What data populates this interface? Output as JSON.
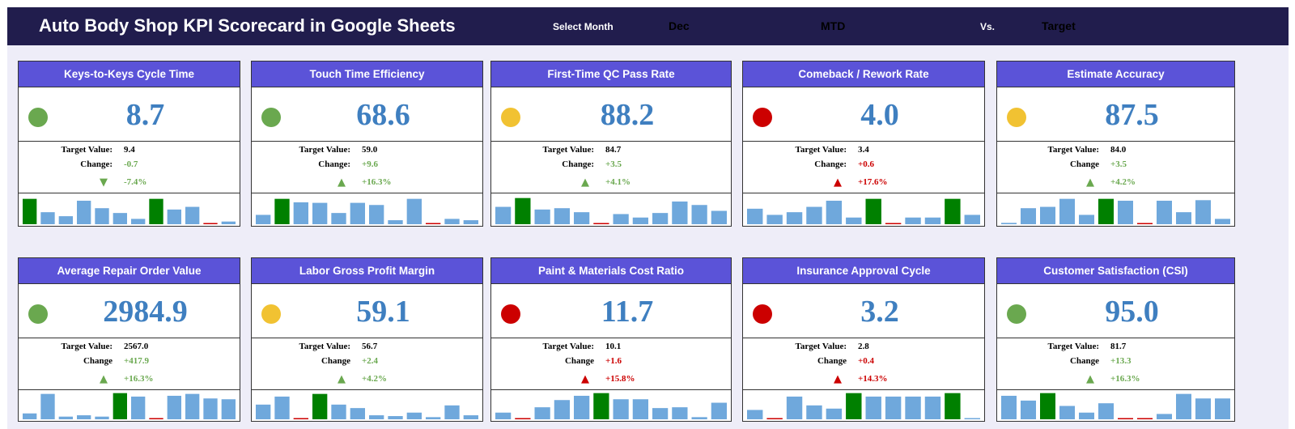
{
  "header": {
    "title": "Auto Body Shop KPI Scorecard in Google Sheets",
    "select_month_label": "Select Month",
    "month_value": "Dec",
    "period_value": "MTD",
    "vs_label": "Vs.",
    "compare_value": "Target"
  },
  "labels": {
    "target": "Target Value:",
    "change_colon": "Change:",
    "change": "Change"
  },
  "colors": {
    "good": "#6aa84f",
    "warn": "#f1c232",
    "bad": "#cc0000",
    "bar": "#6fa8dc",
    "bar_highlight": "#008000",
    "bar_low": "#cc0000",
    "header_bg": "#211d4d",
    "card_head_bg": "#5b53d8"
  },
  "kpis": [
    {
      "title": "Keys-to-Keys Cycle Time",
      "value": "8.7",
      "status": "good",
      "target": "9.4",
      "change_label": "change_colon",
      "change": "-0.7",
      "change_dir": "pos",
      "arrow": "▼",
      "pct": "-7.4%",
      "spark": [
        0.95,
        0.45,
        0.3,
        0.88,
        0.6,
        0.42,
        0.2,
        0.95,
        0.55,
        0.65,
        0.03,
        0.1
      ],
      "spark_hi": [
        0,
        7
      ],
      "spark_low": [
        10
      ]
    },
    {
      "title": "Touch Time Efficiency",
      "value": "68.6",
      "status": "good",
      "target": "59.0",
      "change_label": "change_colon",
      "change": "+9.6",
      "change_dir": "pos",
      "arrow": "▲",
      "pct": "+16.3%",
      "spark": [
        0.35,
        0.95,
        0.82,
        0.8,
        0.42,
        0.8,
        0.72,
        0.15,
        0.95,
        0.03,
        0.2,
        0.15
      ],
      "spark_hi": [
        1
      ],
      "spark_low": [
        9
      ]
    },
    {
      "title": "First-Time QC Pass Rate",
      "value": "88.2",
      "status": "warn",
      "target": "84.7",
      "change_label": "change_colon",
      "change": "+3.5",
      "change_dir": "pos",
      "arrow": "▲",
      "pct": "+4.1%",
      "spark": [
        0.65,
        0.98,
        0.55,
        0.6,
        0.45,
        0.03,
        0.38,
        0.25,
        0.42,
        0.85,
        0.72,
        0.5
      ],
      "spark_hi": [
        1
      ],
      "spark_low": [
        5
      ]
    },
    {
      "title": "Comeback / Rework Rate",
      "value": "4.0",
      "status": "bad",
      "target": "3.4",
      "change_label": "change_colon",
      "change": "+0.6",
      "change_dir": "neg",
      "arrow": "▲",
      "pct": "+17.6%",
      "spark": [
        0.58,
        0.35,
        0.45,
        0.65,
        0.88,
        0.25,
        0.95,
        0.03,
        0.25,
        0.25,
        0.95,
        0.35
      ],
      "spark_hi": [
        6,
        10
      ],
      "spark_low": [
        7
      ]
    },
    {
      "title": "Estimate Accuracy",
      "value": "87.5",
      "status": "warn",
      "target": "84.0",
      "change_label": "change",
      "change": "+3.5",
      "change_dir": "pos",
      "arrow": "▲",
      "pct": "+4.2%",
      "spark": [
        0.05,
        0.6,
        0.65,
        0.95,
        0.35,
        0.95,
        0.88,
        0.03,
        0.88,
        0.45,
        0.9,
        0.2
      ],
      "spark_hi": [
        5
      ],
      "spark_low": [
        7
      ]
    },
    {
      "title": "Average Repair Order Value",
      "value": "2984.9",
      "status": "good",
      "target": "2567.0",
      "change_label": "change",
      "change": "+417.9",
      "change_dir": "pos",
      "arrow": "▲",
      "pct": "+16.3%",
      "spark": [
        0.22,
        0.95,
        0.1,
        0.15,
        0.1,
        0.98,
        0.85,
        0.03,
        0.88,
        0.95,
        0.78,
        0.75
      ],
      "spark_hi": [
        5
      ],
      "spark_low": [
        7
      ]
    },
    {
      "title": "Labor Gross Profit Margin",
      "value": "59.1",
      "status": "warn",
      "target": "56.7",
      "change_label": "change",
      "change": "+2.4",
      "change_dir": "pos",
      "arrow": "▲",
      "pct": "+4.2%",
      "spark": [
        0.55,
        0.85,
        0.03,
        0.95,
        0.55,
        0.42,
        0.15,
        0.12,
        0.25,
        0.08,
        0.52,
        0.15
      ],
      "spark_hi": [
        3
      ],
      "spark_low": [
        2
      ]
    },
    {
      "title": "Paint & Materials Cost Ratio",
      "value": "11.7",
      "status": "bad",
      "target": "10.1",
      "change_label": "change",
      "change": "+1.6",
      "change_dir": "neg",
      "arrow": "▲",
      "pct": "+15.8%",
      "spark": [
        0.25,
        0.03,
        0.45,
        0.72,
        0.88,
        0.98,
        0.75,
        0.75,
        0.42,
        0.45,
        0.08,
        0.62
      ],
      "spark_hi": [
        5
      ],
      "spark_low": [
        1
      ]
    },
    {
      "title": "Insurance Approval Cycle",
      "value": "3.2",
      "status": "bad",
      "target": "2.8",
      "change_label": "change",
      "change": "+0.4",
      "change_dir": "neg",
      "arrow": "▲",
      "pct": "+14.3%",
      "spark": [
        0.35,
        0.03,
        0.85,
        0.52,
        0.4,
        0.98,
        0.85,
        0.85,
        0.85,
        0.85,
        0.98,
        0.03
      ],
      "spark_hi": [
        5,
        10
      ],
      "spark_low": [
        1
      ]
    },
    {
      "title": "Customer Satisfaction (CSI)",
      "value": "95.0",
      "status": "good",
      "target": "81.7",
      "change_label": "change",
      "change": "+13.3",
      "change_dir": "pos",
      "arrow": "▲",
      "pct": "+16.3%",
      "spark": [
        0.88,
        0.7,
        0.98,
        0.5,
        0.25,
        0.6,
        0.03,
        0.03,
        0.2,
        0.95,
        0.78,
        0.78
      ],
      "spark_hi": [
        2
      ],
      "spark_low": [
        6,
        7
      ]
    }
  ]
}
